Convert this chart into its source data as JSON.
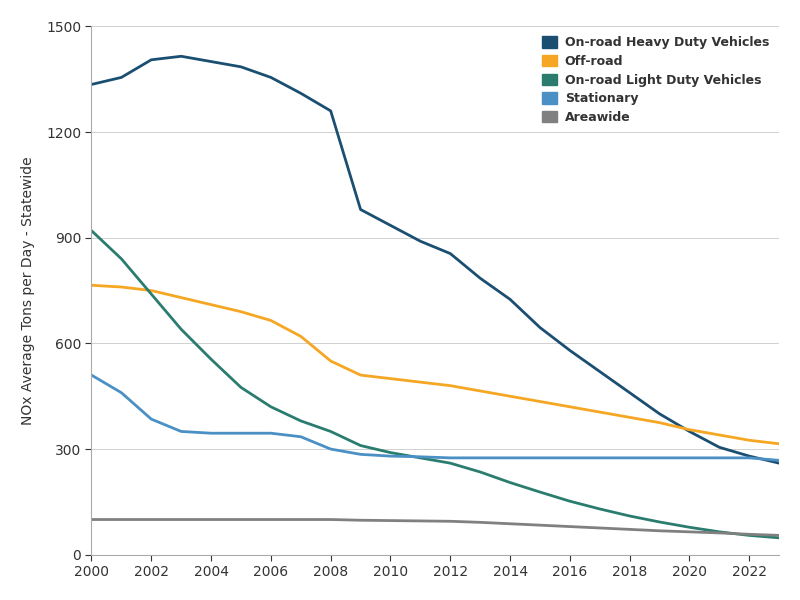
{
  "title": "",
  "ylabel": "NOx Average Tons per Day - Statewide",
  "xlabel": "",
  "ylim": [
    0,
    1500
  ],
  "yticks": [
    0,
    300,
    600,
    900,
    1200,
    1500
  ],
  "xticks": [
    2000,
    2002,
    2004,
    2006,
    2008,
    2010,
    2012,
    2014,
    2016,
    2018,
    2020,
    2022
  ],
  "years": [
    2000,
    2001,
    2002,
    2003,
    2004,
    2005,
    2006,
    2007,
    2008,
    2009,
    2010,
    2011,
    2012,
    2013,
    2014,
    2015,
    2016,
    2017,
    2018,
    2019,
    2020,
    2021,
    2022,
    2023
  ],
  "series": {
    "On-road Heavy Duty Vehicles": {
      "color": "#1b4f72",
      "values": [
        1335,
        1355,
        1405,
        1415,
        1400,
        1385,
        1355,
        1310,
        1260,
        980,
        935,
        890,
        855,
        785,
        725,
        645,
        580,
        520,
        460,
        400,
        350,
        305,
        280,
        260
      ]
    },
    "Off-road": {
      "color": "#f5a623",
      "values": [
        765,
        760,
        750,
        730,
        710,
        690,
        665,
        620,
        550,
        510,
        500,
        490,
        480,
        465,
        450,
        435,
        420,
        405,
        390,
        375,
        355,
        340,
        325,
        315
      ]
    },
    "On-road Light Duty Vehicles": {
      "color": "#2a7d6e",
      "values": [
        920,
        840,
        740,
        640,
        555,
        475,
        420,
        380,
        350,
        310,
        290,
        275,
        260,
        235,
        205,
        178,
        152,
        130,
        110,
        93,
        78,
        65,
        55,
        48
      ]
    },
    "Stationary": {
      "color": "#4a90c4",
      "values": [
        510,
        460,
        385,
        350,
        345,
        345,
        345,
        335,
        300,
        285,
        280,
        278,
        275,
        275,
        275,
        275,
        275,
        275,
        275,
        275,
        275,
        275,
        275,
        268
      ]
    },
    "Areawide": {
      "color": "#808080",
      "values": [
        100,
        100,
        100,
        100,
        100,
        100,
        100,
        100,
        100,
        98,
        97,
        96,
        95,
        92,
        88,
        84,
        80,
        76,
        72,
        68,
        65,
        62,
        58,
        55
      ]
    }
  },
  "legend_order": [
    "On-road Heavy Duty Vehicles",
    "Off-road",
    "On-road Light Duty Vehicles",
    "Stationary",
    "Areawide"
  ],
  "background_color": "#ffffff",
  "grid_color": "#d0d0d0",
  "linewidth": 2.0,
  "figsize": [
    8.0,
    6.0
  ],
  "dpi": 100
}
